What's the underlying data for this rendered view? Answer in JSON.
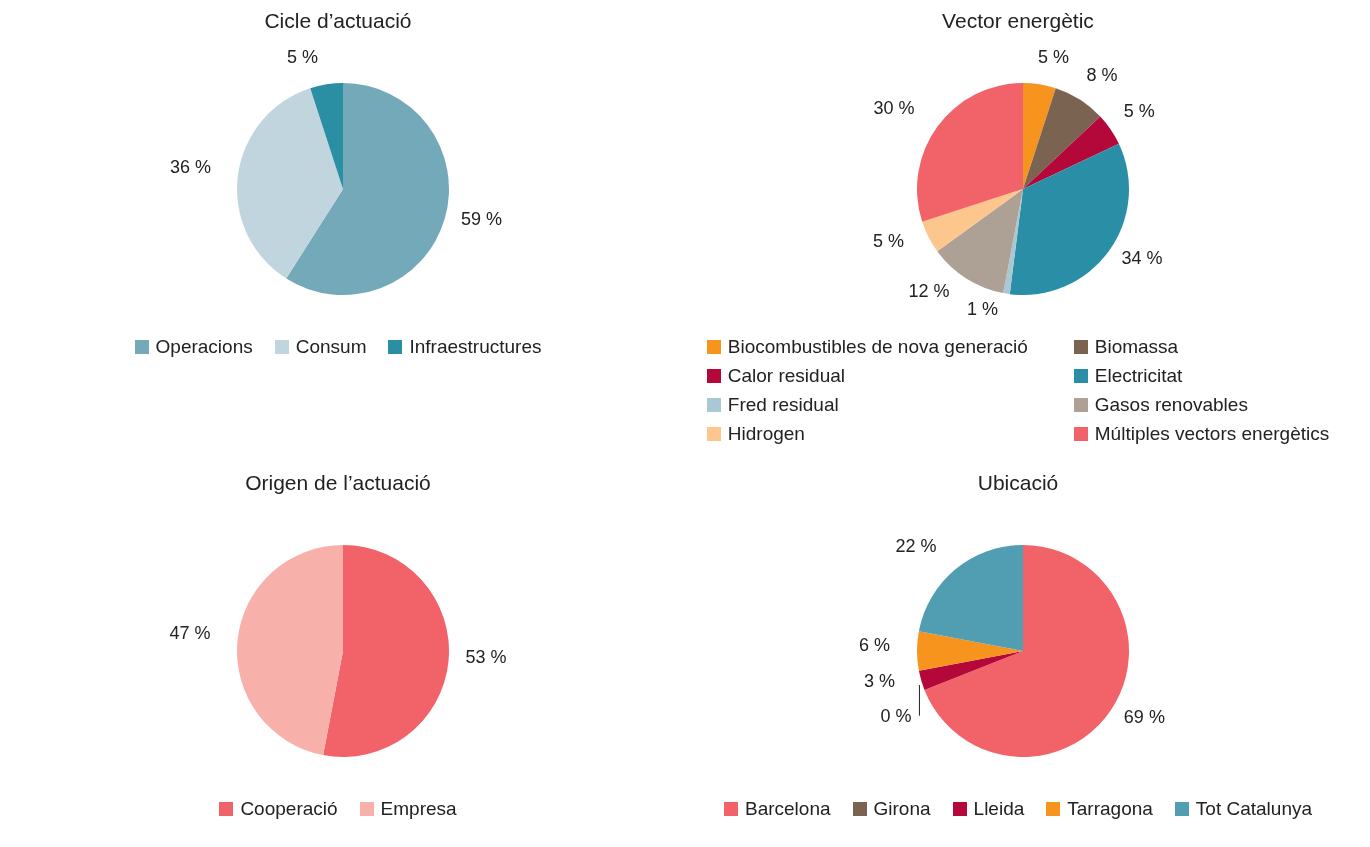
{
  "chart_data": [
    {
      "type": "pie",
      "title": "Cicle d’actuació",
      "categories": [
        "Operacions",
        "Consum",
        "Infraestructures"
      ],
      "values": [
        59,
        36,
        5
      ],
      "colors": [
        "#74a9ba",
        "#c0d5de",
        "#2a8fa3"
      ],
      "value_labels": [
        "59 %",
        "36 %",
        "5 %"
      ],
      "legend": "bottom"
    },
    {
      "type": "pie",
      "title": "Vector energètic",
      "categories": [
        "Biocombustibles de nova generació",
        "Biomassa",
        "Calor residual",
        "Electricitat",
        "Fred residual",
        "Gasos renovables",
        "Hidrogen",
        "Múltiples vectors energètics"
      ],
      "values": [
        5,
        8,
        5,
        34,
        1,
        12,
        5,
        30
      ],
      "colors": [
        "#f7941d",
        "#7b6352",
        "#b5083a",
        "#2a8fa6",
        "#a9c8d3",
        "#ada095",
        "#fdc68c",
        "#f26369"
      ],
      "value_labels": [
        "5 %",
        "8 %",
        "5 %",
        "34 %",
        "1 %",
        "12 %",
        "5 %",
        "30 %"
      ],
      "legend": "bottom"
    },
    {
      "type": "pie",
      "title": "Origen de l’actuació",
      "categories": [
        "Cooperació",
        "Empresa"
      ],
      "values": [
        53,
        47
      ],
      "colors": [
        "#f26369",
        "#f8b0ab"
      ],
      "value_labels": [
        "53 %",
        "47 %"
      ],
      "legend": "bottom"
    },
    {
      "type": "pie",
      "title": "Ubicació",
      "categories": [
        "Barcelona",
        "Girona",
        "Lleida",
        "Tarragona",
        "Tot Catalunya"
      ],
      "values": [
        69,
        0,
        3,
        6,
        22
      ],
      "colors": [
        "#f26369",
        "#7b6352",
        "#b5083a",
        "#f7941d",
        "#519db2"
      ],
      "value_labels": [
        "69 %",
        "0 %",
        "3 %",
        "6 %",
        "22 %"
      ],
      "legend": "bottom"
    }
  ]
}
